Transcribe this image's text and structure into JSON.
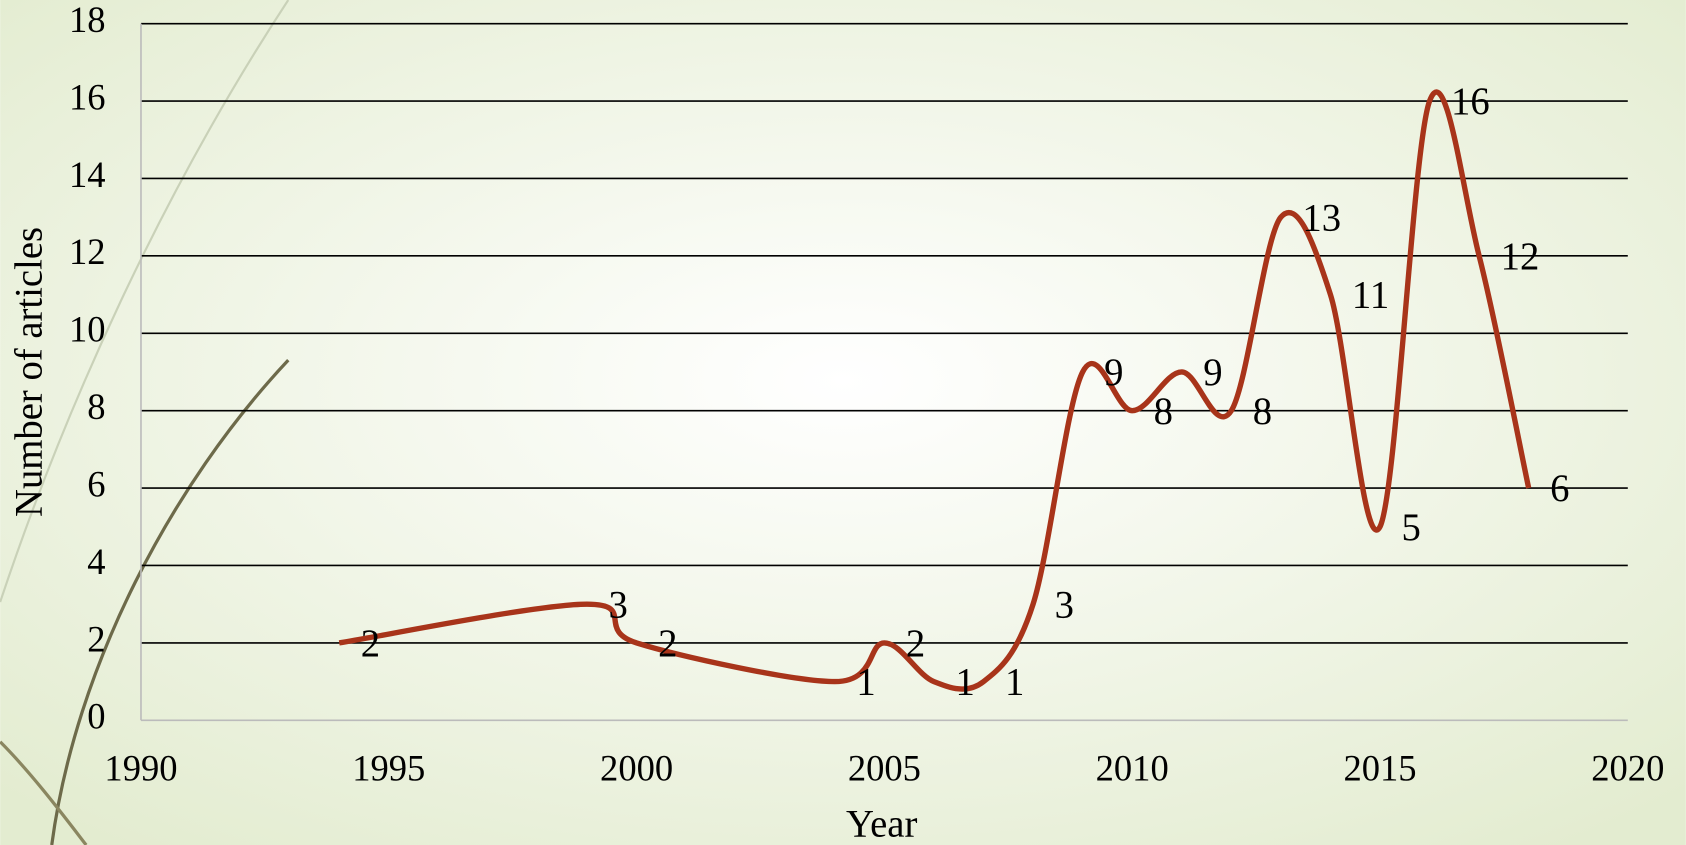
{
  "chart_data": {
    "type": "line",
    "x_label": "Year",
    "y_label": "Number of articles",
    "x": [
      1994,
      1999,
      2000,
      2004,
      2005,
      2006,
      2007,
      2008,
      2009,
      2010,
      2011,
      2012,
      2013,
      2014,
      2015,
      2016,
      2017,
      2018
    ],
    "values": [
      2,
      3,
      2,
      1,
      2,
      1,
      1,
      3,
      9,
      8,
      9,
      8,
      13,
      11,
      5,
      16,
      12,
      6
    ],
    "color": "#a8341a",
    "xlim": [
      1990,
      2020
    ],
    "xticks": [
      1990,
      1995,
      2000,
      2005,
      2010,
      2015,
      2020
    ],
    "ylim": [
      0,
      18
    ],
    "yticks": [
      0,
      2,
      4,
      6,
      8,
      10,
      12,
      14,
      16,
      18
    ],
    "grid": true
  }
}
